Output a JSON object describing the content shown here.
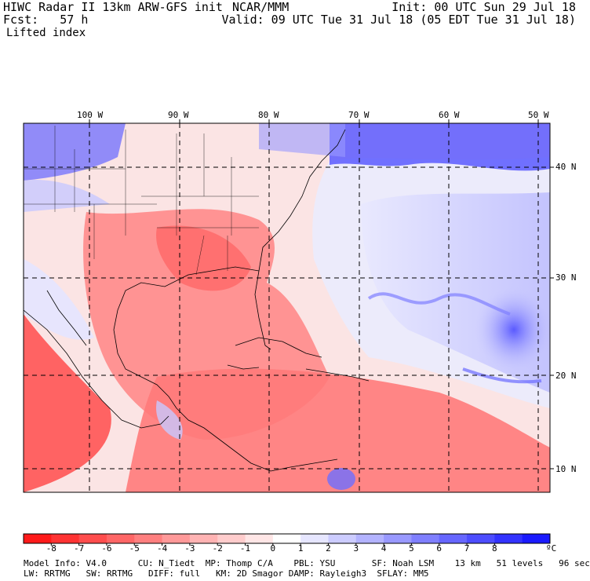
{
  "header": {
    "model": "HIWC Radar II 13km ARW-GFS init",
    "org": "NCAR/MMM",
    "forecast": "Fcst:   57 h",
    "field": "Lifted index",
    "init": "Init: 00 UTC Sun 29 Jul 18",
    "valid": "Valid: 09 UTC Tue 31 Jul 18 (05 EDT Tue 31 Jul 18)"
  },
  "map": {
    "lon_labels": [
      "100 W",
      "90 W",
      "80 W",
      "70 W",
      "60 W",
      "50 W"
    ],
    "lat_labels": [
      "40 N",
      "30 N",
      "20 N",
      "10 N"
    ]
  },
  "colorbar": {
    "ticks": [
      "-8",
      "-7",
      "-6",
      "-5",
      "-4",
      "-3",
      "-2",
      "-1",
      "0",
      "1",
      "2",
      "3",
      "4",
      "5",
      "6",
      "7",
      "8"
    ],
    "unit": "ºC",
    "colors": [
      "#ff1a1a",
      "#ff3333",
      "#ff4d4d",
      "#ff6666",
      "#ff7f7f",
      "#ff9999",
      "#ffb3b3",
      "#ffcccc",
      "#ffe6e6",
      "#ffffff",
      "#e6e6ff",
      "#ccccff",
      "#b3b3ff",
      "#9999ff",
      "#7f7fff",
      "#6666ff",
      "#4d4dff",
      "#3333ff",
      "#1a1aff"
    ]
  },
  "footer": {
    "line1": "Model Info: V4.0      CU: N_Tiedt  MP: Thomp C/A    PBL: YSU       SF: Noah LSM    13 km   51 levels   96 sec",
    "line2": "LW: RRTMG   SW: RRTMG   DIFF: full   KM: 2D Smagor DAMP: Rayleigh3  SFLAY: MM5"
  }
}
